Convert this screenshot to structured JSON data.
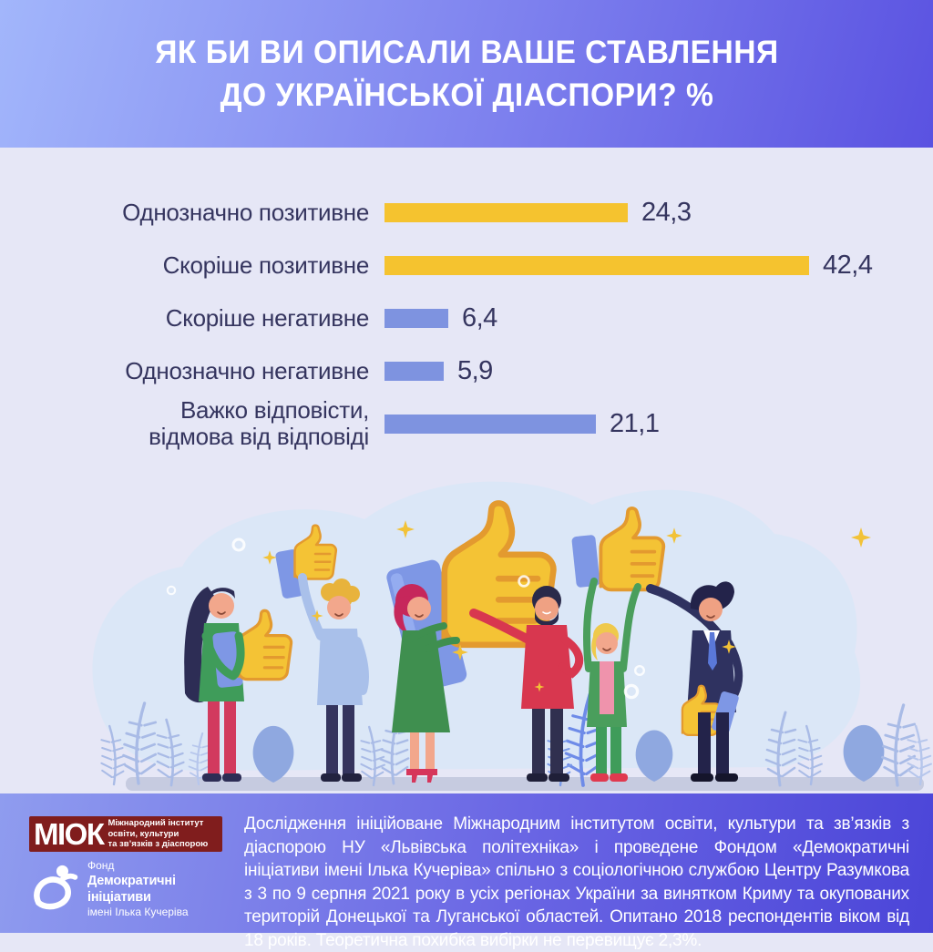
{
  "header": {
    "title_line1": "ЯК БИ ВИ ОПИСАЛИ ВАШЕ СТАВЛЕННЯ",
    "title_line2": "ДО УКРАЇНСЬКОЇ ДІАСПОРИ? %"
  },
  "chart_data": {
    "type": "bar",
    "orientation": "horizontal",
    "title": "ЯК БИ ВИ ОПИСАЛИ ВАШЕ СТАВЛЕННЯ ДО УКРАЇНСЬКОЇ ДІАСПОРИ? %",
    "unit": "%",
    "categories": [
      "Однозначно позитивне",
      "Скоріше позитивне",
      "Скоріше негативне",
      "Однозначно негативне",
      "Важко відповісти,\nвідмова від відповіді"
    ],
    "values": [
      24.3,
      42.4,
      6.4,
      5.9,
      21.1
    ],
    "value_labels": [
      "24,3",
      "42,4",
      "6,4",
      "5,9",
      "21,1"
    ],
    "bar_colors": [
      "#F5C32F",
      "#F5C32F",
      "#7E93E0",
      "#7E93E0",
      "#7E93E0"
    ],
    "xlim": [
      0,
      45
    ],
    "grid": false,
    "legend": false
  },
  "illustration": {
    "description": "group of six people holding yellow thumbs-up signs",
    "icons": [
      "thumbs-up-icon",
      "sparkle-icon",
      "plant-leaves"
    ]
  },
  "footer": {
    "miok_logo": {
      "acronym": "МІОК",
      "line1": "Міжнародний інститут",
      "line2": "освіти, культури",
      "line3": "та зв’язків з діаспорою"
    },
    "dif_logo": {
      "line1": "Фонд",
      "line2": "Демократичні ініціативи",
      "line3": "імені Ілька Кучеріва"
    },
    "text": "Дослідження ініційоване Міжнародним інститутом освіти, культури та зв’язків з діаспорою НУ «Львівська політехніка» і проведене Фондом «Демократичні ініціативи імені Ілька Кучеріва» спільно з соціологічною службою Центру Разумкова з 3 по 9 серпня 2021 року в усіх регіонах України за винятком Криму та окупованих територій Донецької та Луганської областей. Опитано 2018 респондентів віком від 18 років. Теоретична похибка вибірки не перевищує 2,3%."
  },
  "colors": {
    "bar_positive_yellow": "#F5C32F",
    "bar_negative_blue": "#7E93E0",
    "header_gradient_start": "#A2B6FB",
    "header_gradient_end": "#5A52E1",
    "footer_gradient_start": "#8F9CEF",
    "footer_gradient_end": "#4B45D8",
    "chart_background": "#E6E7F6",
    "text_dark": "#35355F",
    "miok_logo_background": "#801D1D"
  }
}
